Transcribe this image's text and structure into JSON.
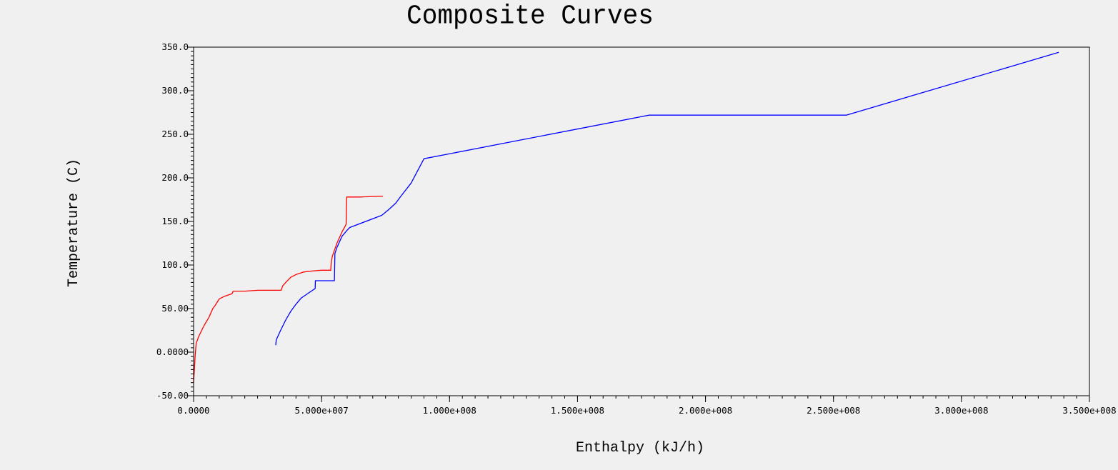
{
  "chart_data": {
    "type": "line",
    "title": "Composite Curves",
    "xlabel": "Enthalpy (kJ/h)",
    "ylabel": "Temperature (C)",
    "xlim": [
      0,
      350000000
    ],
    "ylim": [
      -50,
      350
    ],
    "x_ticks": [
      {
        "value": 0,
        "label": "0.0000"
      },
      {
        "value": 50000000,
        "label": "5.000e+007"
      },
      {
        "value": 100000000,
        "label": "1.000e+008"
      },
      {
        "value": 150000000,
        "label": "1.500e+008"
      },
      {
        "value": 200000000,
        "label": "2.000e+008"
      },
      {
        "value": 250000000,
        "label": "2.500e+008"
      },
      {
        "value": 300000000,
        "label": "3.000e+008"
      },
      {
        "value": 350000000,
        "label": "3.500e+008"
      }
    ],
    "y_ticks": [
      {
        "value": 350,
        "label": "350.0"
      },
      {
        "value": 300,
        "label": "300.0"
      },
      {
        "value": 250,
        "label": "250.0"
      },
      {
        "value": 200,
        "label": "200.0"
      },
      {
        "value": 150,
        "label": "150.0"
      },
      {
        "value": 100,
        "label": "100.0"
      },
      {
        "value": 50,
        "label": "50.00"
      },
      {
        "value": 0,
        "label": "0.0000"
      },
      {
        "value": -50,
        "label": "-50.00"
      }
    ],
    "grid": false,
    "series": [
      {
        "color": "#ff0000",
        "points": [
          [
            0,
            -35
          ],
          [
            300000,
            -20
          ],
          [
            600000,
            -5
          ],
          [
            1000000,
            10
          ],
          [
            2000000,
            18
          ],
          [
            4000000,
            30
          ],
          [
            6000000,
            40
          ],
          [
            7500000,
            50
          ],
          [
            8500000,
            54
          ],
          [
            10000000,
            61
          ],
          [
            12000000,
            64
          ],
          [
            15000000,
            67
          ],
          [
            15500000,
            70
          ],
          [
            20000000,
            70
          ],
          [
            25000000,
            71
          ],
          [
            30000000,
            71
          ],
          [
            34200000,
            71
          ],
          [
            34800000,
            76
          ],
          [
            36000000,
            80
          ],
          [
            38000000,
            86
          ],
          [
            40000000,
            89
          ],
          [
            43000000,
            92
          ],
          [
            46000000,
            93
          ],
          [
            50000000,
            94
          ],
          [
            53600000,
            94
          ],
          [
            53800000,
            104
          ],
          [
            54200000,
            110
          ],
          [
            56000000,
            125
          ],
          [
            58000000,
            138
          ],
          [
            59300000,
            145
          ],
          [
            59600000,
            147
          ],
          [
            59800000,
            178
          ],
          [
            65000000,
            178
          ],
          [
            74000000,
            179
          ]
        ]
      },
      {
        "color": "#0000ff",
        "points": [
          [
            32100000,
            8
          ],
          [
            32300000,
            14
          ],
          [
            34000000,
            25
          ],
          [
            36000000,
            37
          ],
          [
            38000000,
            47
          ],
          [
            40000000,
            55
          ],
          [
            42000000,
            62
          ],
          [
            45000000,
            68
          ],
          [
            47500000,
            73
          ],
          [
            47600000,
            82
          ],
          [
            55000000,
            82
          ],
          [
            55200000,
            113
          ],
          [
            56000000,
            120
          ],
          [
            58000000,
            133
          ],
          [
            60000000,
            140
          ],
          [
            61000000,
            143
          ],
          [
            73500000,
            157
          ],
          [
            76000000,
            163
          ],
          [
            79000000,
            171
          ],
          [
            81000000,
            179
          ],
          [
            85000000,
            194
          ],
          [
            90000000,
            222
          ],
          [
            178000000,
            272
          ],
          [
            255000000,
            272
          ],
          [
            338000000,
            344
          ]
        ]
      }
    ]
  }
}
